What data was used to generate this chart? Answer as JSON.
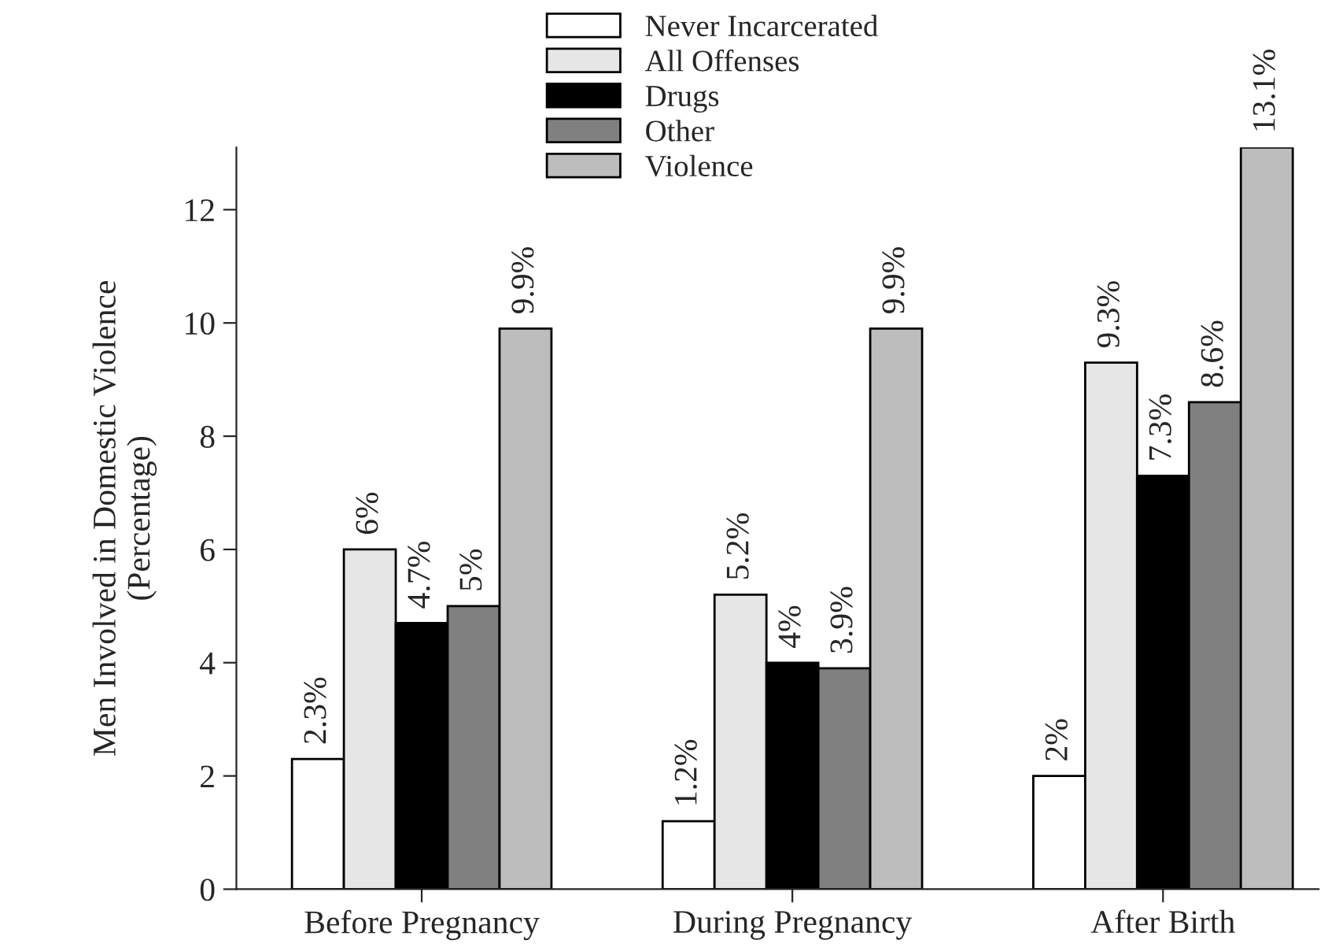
{
  "chart_data": {
    "type": "bar",
    "ylabel": "Men Involved in Domestic Violence\n(Percentage)",
    "categories": [
      "Before Pregnancy",
      "During Pregnancy",
      "After Birth"
    ],
    "series": [
      {
        "name": "Never Incarcerated",
        "color": "#ffffff",
        "values": [
          2.3,
          1.2,
          2
        ],
        "value_labels": [
          "2.3%",
          "1.2%",
          "2%"
        ]
      },
      {
        "name": "All Offenses",
        "color": "#e6e6e6",
        "values": [
          6,
          5.2,
          9.3
        ],
        "value_labels": [
          "6%",
          "5.2%",
          "9.3%"
        ]
      },
      {
        "name": "Drugs",
        "color": "#000000",
        "values": [
          4.7,
          4,
          7.3
        ],
        "value_labels": [
          "4.7%",
          "4%",
          "7.3%"
        ]
      },
      {
        "name": "Other",
        "color": "#808080",
        "values": [
          5,
          3.9,
          8.6
        ],
        "value_labels": [
          "5%",
          "3.9%",
          "8.6%"
        ]
      },
      {
        "name": "Violence",
        "color": "#bdbdbd",
        "values": [
          9.9,
          9.9,
          13.1
        ],
        "value_labels": [
          "9.9%",
          "9.9%",
          "13.1%"
        ]
      }
    ],
    "ylim": [
      0,
      13.1
    ],
    "yticks": [
      0,
      2,
      4,
      6,
      8,
      10,
      12
    ],
    "grid": false,
    "legend": "top"
  }
}
